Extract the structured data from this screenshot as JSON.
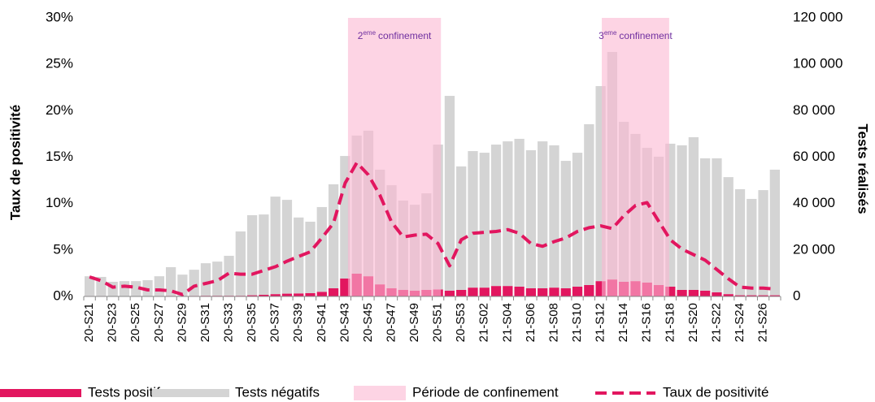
{
  "chart_data": {
    "type": "combo",
    "y_label": "Taux de positivité",
    "y2_label": "Tests réalisés",
    "categories": [
      "20-S21",
      null,
      "20-S23",
      null,
      "20-S25",
      null,
      "20-S27",
      null,
      "20-S29",
      null,
      "20-S31",
      null,
      "20-S33",
      null,
      "20-S35",
      null,
      "20-S37",
      null,
      "20-S39",
      null,
      "20-S41",
      null,
      "20-S43",
      null,
      "20-S45",
      null,
      "20-S47",
      null,
      "20-S49",
      null,
      "20-S51",
      null,
      "20-S53",
      null,
      "21-S02",
      null,
      "21-S04",
      null,
      "21-S06",
      null,
      "21-S08",
      null,
      "21-S10",
      null,
      "21-S12",
      null,
      "21-S14",
      null,
      "21-S16",
      null,
      "21-S18",
      null,
      "21-S20",
      null,
      "21-S22",
      null,
      "21-S24",
      null,
      "21-S26",
      null
    ],
    "series": [
      {
        "name": "Tests positifs",
        "type": "bar",
        "axis": "y2",
        "color": "#e2165f",
        "values": [
          200,
          200,
          150,
          150,
          150,
          150,
          200,
          250,
          200,
          250,
          300,
          300,
          300,
          300,
          500,
          700,
          1000,
          1200,
          1300,
          1400,
          2000,
          3500,
          7700,
          9800,
          8700,
          5200,
          3500,
          2800,
          2500,
          2800,
          3000,
          2500,
          2800,
          3800,
          3800,
          4500,
          4500,
          4200,
          3500,
          3500,
          3800,
          3500,
          4200,
          4900,
          6600,
          7300,
          6300,
          6600,
          6000,
          4900,
          4200,
          2800,
          2800,
          2500,
          1800,
          1000,
          500,
          500,
          500,
          500
        ]
      },
      {
        "name": "Tests négatifs",
        "type": "bar",
        "axis": "y2",
        "color": "#d4d4d4",
        "values": [
          8500,
          8200,
          6150,
          6450,
          6450,
          6850,
          8500,
          12350,
          9200,
          11250,
          14000,
          14700,
          17200,
          27700,
          34500,
          34600,
          42000,
          40400,
          32700,
          30800,
          36500,
          44800,
          52800,
          59500,
          62700,
          49400,
          44400,
          38500,
          37000,
          41600,
          62400,
          83900,
          53200,
          58800,
          58100,
          60900,
          62300,
          63700,
          59500,
          63300,
          61300,
          54900,
          57700,
          69300,
          84000,
          98000,
          68900,
          63400,
          58000,
          55300,
          61600,
          62300,
          65800,
          57000,
          57700,
          50400,
          45700,
          41500,
          45300,
          54100
        ]
      },
      {
        "name": "Taux de positivité",
        "type": "line",
        "axis": "y",
        "color": "#e2165f",
        "dashed": true,
        "values": [
          2.1,
          1.7,
          1.0,
          1.1,
          1.0,
          0.7,
          0.7,
          0.6,
          0.2,
          1.1,
          1.4,
          1.7,
          2.5,
          2.4,
          2.4,
          2.8,
          3.2,
          3.8,
          4.3,
          4.8,
          6.3,
          7.9,
          12.2,
          14.4,
          13.1,
          10.9,
          8.0,
          6.4,
          6.6,
          6.7,
          5.7,
          3.3,
          6.1,
          6.8,
          6.9,
          7.0,
          7.2,
          6.8,
          5.7,
          5.4,
          5.9,
          6.3,
          7.0,
          7.4,
          7.6,
          7.3,
          8.7,
          9.8,
          10.1,
          8.1,
          6.1,
          5.1,
          4.5,
          3.9,
          2.9,
          1.9,
          1.0,
          0.9,
          0.9,
          0.8
        ]
      }
    ],
    "period_name": "Période de confinement",
    "period_color": "#fbb8d2",
    "periods": [
      {
        "number": "2",
        "suffix": "eme",
        "text": "confinement",
        "x": [
          22.75,
          30.75
        ]
      },
      {
        "number": "3",
        "suffix": "eme",
        "text": "confinement",
        "x": [
          44.6,
          50.4
        ]
      }
    ],
    "ylim": [
      0,
      30
    ],
    "yticks": [
      {
        "value": 0,
        "label": "0%"
      },
      {
        "value": 5,
        "label": "5%"
      },
      {
        "value": 10,
        "label": "10%"
      },
      {
        "value": 15,
        "label": "15%"
      },
      {
        "value": 20,
        "label": "20%"
      },
      {
        "value": 25,
        "label": "25%"
      },
      {
        "value": 30,
        "label": "30%"
      }
    ],
    "y2lim": [
      0,
      120000
    ],
    "y2ticks": [
      0,
      {
        "value": 20000,
        "label": "20 000"
      },
      {
        "value": 40000,
        "label": "40 000"
      },
      {
        "value": 60000,
        "label": "60 000"
      },
      {
        "value": 80000,
        "label": "80 000"
      },
      {
        "value": 100000,
        "label": "100 000"
      },
      {
        "value": 120000,
        "label": "120 000"
      }
    ]
  }
}
